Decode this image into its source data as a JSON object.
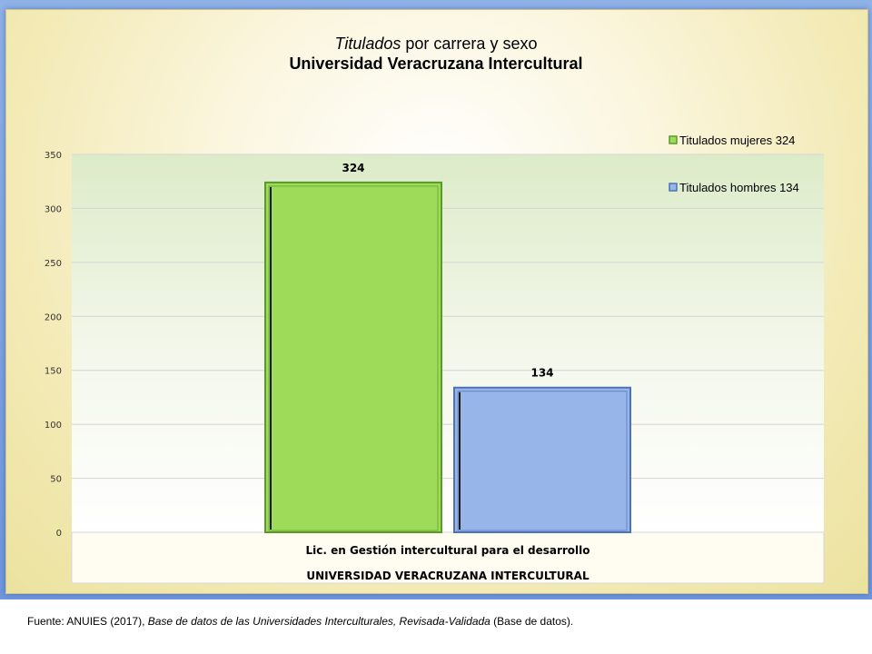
{
  "chart_data": {
    "type": "bar",
    "title_italic": "Titulados",
    "title_rest": " por carrera y sexo",
    "subtitle": "Universidad Veracruzana Intercultural",
    "categories": [
      "Lic. en Gestión intercultural para el desarrollo"
    ],
    "category_group": "UNIVERSIDAD VERACRUZANA INTERCULTURAL",
    "series": [
      {
        "name": "Titulados mujeres  324",
        "values": [
          324
        ],
        "color": "#9edb58",
        "edge": "#5a9a2a"
      },
      {
        "name": "Titulados hombres  134",
        "values": [
          134
        ],
        "color": "#97b5e8",
        "edge": "#4e72b4"
      }
    ],
    "y_ticks": [
      "0",
      "50",
      "100",
      "150",
      "200",
      "250",
      "300",
      "350"
    ],
    "ylim": [
      0,
      350
    ],
    "grid": true,
    "legend_position": "top-right"
  },
  "footer": {
    "lead": "Fuente: ANUIES (2017), ",
    "italic": "Base de datos de las Universidades  Interculturales, Revisada-Validada",
    "tail": "  (Base de datos)."
  }
}
